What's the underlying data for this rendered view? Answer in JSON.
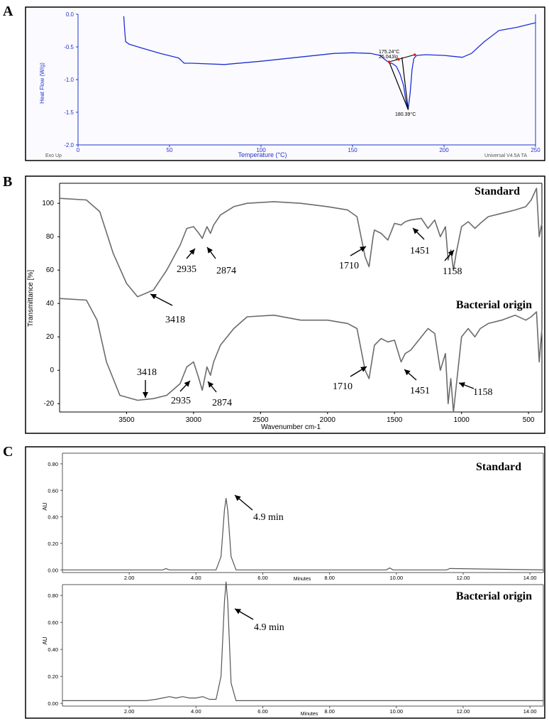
{
  "panels": {
    "A": {
      "letter": "A",
      "chart_data": {
        "type": "line",
        "xlabel": "Temperature (°C)",
        "ylabel": "Heat Flow (W/g)",
        "xlim": [
          0,
          250
        ],
        "ylim": [
          -2.0,
          0.0
        ],
        "x_ticks": [
          "0",
          "50",
          "100",
          "150",
          "200",
          "250"
        ],
        "y_ticks": [
          "0.0",
          "-0.5",
          "-1.0",
          "-1.5",
          "-2.0"
        ],
        "series": [
          {
            "x": [
              25,
              25.5,
              26,
              28,
              35,
              45,
              55,
              58,
              62,
              80,
              100,
              120,
              140,
              150,
              160,
              165,
              168,
              170,
              172,
              174,
              176,
              178,
              179,
              180.4,
              181.5,
              182.5,
              183.5,
              185,
              190,
              200,
              210,
              215,
              222,
              230,
              240,
              250
            ],
            "y": [
              -0.03,
              -0.25,
              -0.42,
              -0.46,
              -0.52,
              -0.6,
              -0.67,
              -0.75,
              -0.75,
              -0.77,
              -0.72,
              -0.66,
              -0.6,
              -0.59,
              -0.6,
              -0.63,
              -0.7,
              -0.74,
              -0.76,
              -0.8,
              -0.92,
              -1.1,
              -1.3,
              -1.46,
              -1.2,
              -0.85,
              -0.68,
              -0.63,
              -0.62,
              -0.63,
              -0.66,
              -0.6,
              -0.42,
              -0.25,
              -0.2,
              -0.13
            ]
          }
        ],
        "annotations": [
          "175.24°C",
          "25.04J/g",
          "180.39°C"
        ],
        "corner_left": "Exo Up",
        "corner_right": "Universal V4.5A TA"
      }
    },
    "B": {
      "letter": "B",
      "chart_data": {
        "type": "line",
        "xlabel": "Wavenumber cm-1",
        "ylabel": "Transmittance [%]",
        "xlim": [
          4000,
          400
        ],
        "ylim": [
          -25,
          112
        ],
        "x_ticks": [
          "3500",
          "3000",
          "2500",
          "2000",
          "1500",
          "1000",
          "500"
        ],
        "y_ticks": [
          "100",
          "80",
          "60",
          "40",
          "20",
          "0",
          "-20"
        ],
        "series": [
          {
            "name": "Standard",
            "x": [
              4000,
              3800,
              3700,
              3600,
              3500,
              3418,
              3300,
              3200,
              3100,
              3050,
              3000,
              2960,
              2935,
              2900,
              2874,
              2850,
              2800,
              2700,
              2600,
              2400,
              2200,
              2000,
              1850,
              1780,
              1720,
              1690,
              1660,
              1650,
              1600,
              1550,
              1500,
              1451,
              1420,
              1380,
              1300,
              1250,
              1200,
              1158,
              1120,
              1100,
              1080,
              1060,
              1040,
              1000,
              950,
              900,
              860,
              800,
              700,
              600,
              520,
              480,
              440,
              420,
              400
            ],
            "y": [
              103,
              102,
              95,
              70,
              52,
              44,
              48,
              60,
              75,
              85,
              86,
              82,
              79,
              86,
              82,
              87,
              93,
              98,
              100,
              101,
              100,
              98,
              96,
              92,
              68,
              62,
              80,
              84,
              82,
              78,
              88,
              87,
              89,
              90,
              91,
              85,
              90,
              80,
              86,
              66,
              72,
              60,
              70,
              86,
              89,
              85,
              88,
              92,
              94,
              96,
              98,
              102,
              109,
              80,
              88
            ]
          },
          {
            "name": "Bacterial origin",
            "x": [
              4000,
              3800,
              3720,
              3650,
              3550,
              3418,
              3300,
              3200,
              3100,
              3050,
              3000,
              2960,
              2935,
              2900,
              2874,
              2850,
              2800,
              2700,
              2600,
              2400,
              2200,
              2000,
              1850,
              1780,
              1720,
              1690,
              1660,
              1650,
              1600,
              1550,
              1500,
              1451,
              1420,
              1380,
              1300,
              1250,
              1200,
              1158,
              1120,
              1100,
              1080,
              1060,
              1040,
              1000,
              950,
              900,
              860,
              800,
              700,
              600,
              520,
              480,
              440,
              420,
              400
            ],
            "y": [
              43,
              42,
              30,
              5,
              -15,
              -18,
              -17,
              -15,
              -8,
              2,
              5,
              -5,
              -12,
              2,
              -3,
              5,
              15,
              25,
              32,
              33,
              30,
              30,
              28,
              25,
              0,
              -5,
              10,
              15,
              19,
              17,
              18,
              5,
              10,
              12,
              20,
              25,
              22,
              0,
              10,
              -20,
              -5,
              -25,
              -10,
              20,
              25,
              20,
              25,
              28,
              30,
              33,
              30,
              32,
              35,
              5,
              25
            ]
          }
        ],
        "annotations": [
          "3418",
          "2935",
          "2874",
          "1710",
          "1451",
          "1158"
        ]
      }
    },
    "C": {
      "letter": "C",
      "chart_data": [
        {
          "type": "line",
          "name": "Standard",
          "xlabel": "Minutes",
          "ylabel": "AU",
          "xlim": [
            0,
            14.4
          ],
          "ylim": [
            -0.02,
            0.88
          ],
          "x_ticks": [
            "2.00",
            "4.00",
            "6.00",
            "8.00",
            "10.00",
            "12.00",
            "14.00"
          ],
          "y_ticks": [
            "0.00",
            "0.20",
            "0.40",
            "0.60",
            "0.80"
          ],
          "series": [
            {
              "name": "Standard",
              "x": [
                0,
                2.0,
                3.0,
                3.1,
                3.2,
                4.0,
                4.6,
                4.75,
                4.85,
                4.9,
                4.95,
                5.05,
                5.2,
                6.0,
                9.7,
                9.8,
                9.9,
                11.5,
                11.6,
                14.4
              ],
              "y": [
                0.0,
                0.0,
                0.0,
                0.01,
                0.0,
                0.0,
                0.0,
                0.1,
                0.45,
                0.54,
                0.45,
                0.1,
                0.0,
                0.0,
                0.0,
                0.015,
                0.0,
                0.0,
                0.01,
                0.0
              ]
            }
          ],
          "annotation": "4.9 min"
        },
        {
          "type": "line",
          "name": "Bacterial origin",
          "xlabel": "Minutes",
          "ylabel": "AU",
          "xlim": [
            0,
            14.4
          ],
          "ylim": [
            -0.02,
            0.88
          ],
          "x_ticks": [
            "2.00",
            "4.00",
            "6.00",
            "8.00",
            "10.00",
            "12.00",
            "14.00"
          ],
          "y_ticks": [
            "0.00",
            "0.20",
            "0.40",
            "0.60",
            "0.80"
          ],
          "series": [
            {
              "name": "Bacterial origin",
              "x": [
                0,
                2.5,
                2.8,
                3.0,
                3.2,
                3.4,
                3.6,
                3.8,
                4.0,
                4.2,
                4.4,
                4.6,
                4.75,
                4.85,
                4.9,
                4.95,
                5.05,
                5.2,
                6.0,
                14.4
              ],
              "y": [
                0.02,
                0.02,
                0.03,
                0.04,
                0.05,
                0.04,
                0.05,
                0.04,
                0.04,
                0.05,
                0.03,
                0.03,
                0.2,
                0.75,
                0.9,
                0.75,
                0.15,
                0.02,
                0.02,
                0.02
              ]
            }
          ],
          "annotation": "4.9 min"
        }
      ]
    }
  }
}
